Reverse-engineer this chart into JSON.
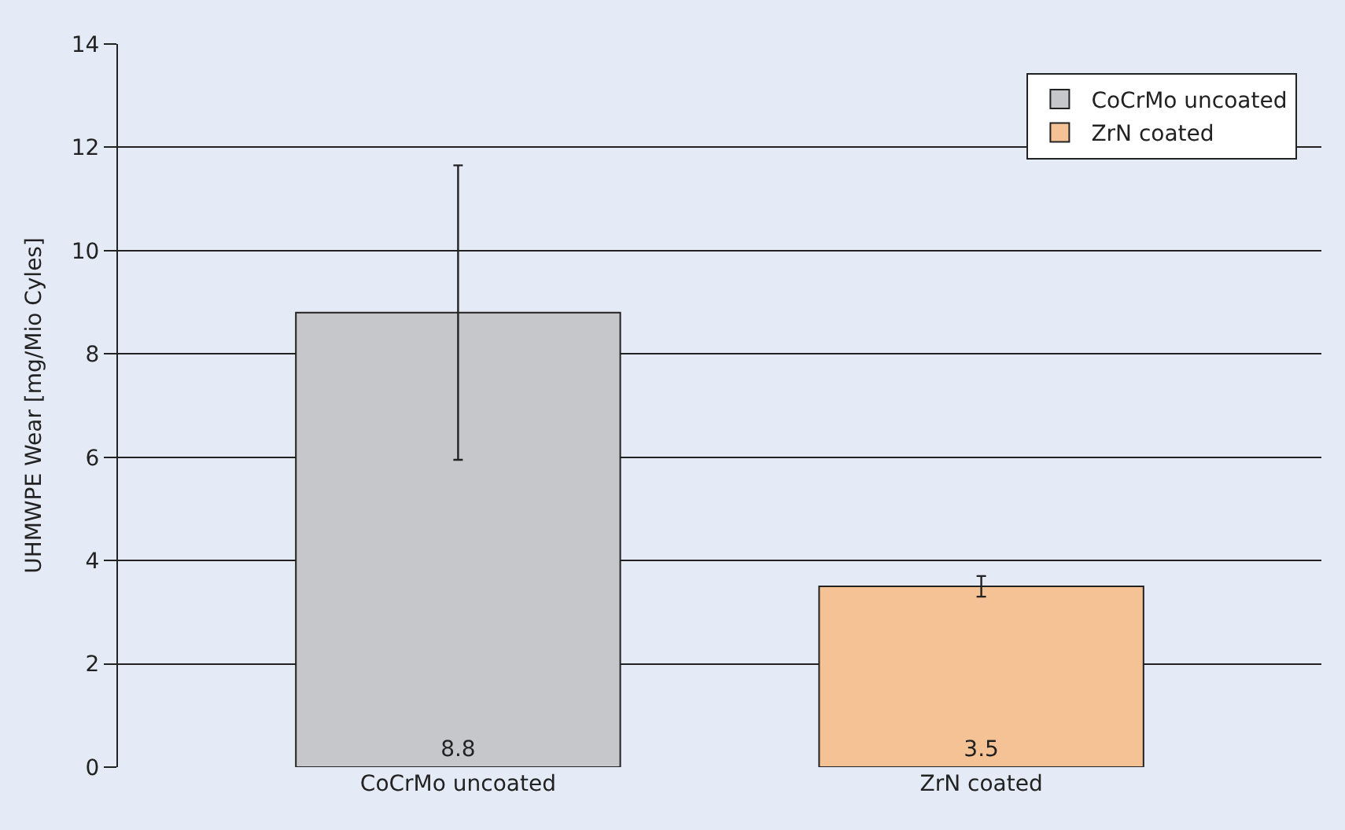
{
  "chart_data": {
    "type": "bar",
    "ylabel": "UHMWPE Wear [mg/Mio Cyles]",
    "categories": [
      "CoCrMo uncoated",
      "ZrN coated"
    ],
    "series": [
      {
        "name": "CoCrMo uncoated",
        "color": "#c6c7ca",
        "values": [
          8.8,
          null
        ],
        "errors": [
          2.85,
          null
        ]
      },
      {
        "name": "ZrN coated",
        "color": "#f4c295",
        "values": [
          null,
          3.5
        ],
        "errors": [
          null,
          0.2
        ]
      }
    ],
    "ylim": [
      0,
      14
    ],
    "yticks": [
      0,
      2,
      4,
      6,
      8,
      10,
      12,
      14
    ],
    "grid": "y",
    "legend": "top right",
    "data_labels": true
  }
}
